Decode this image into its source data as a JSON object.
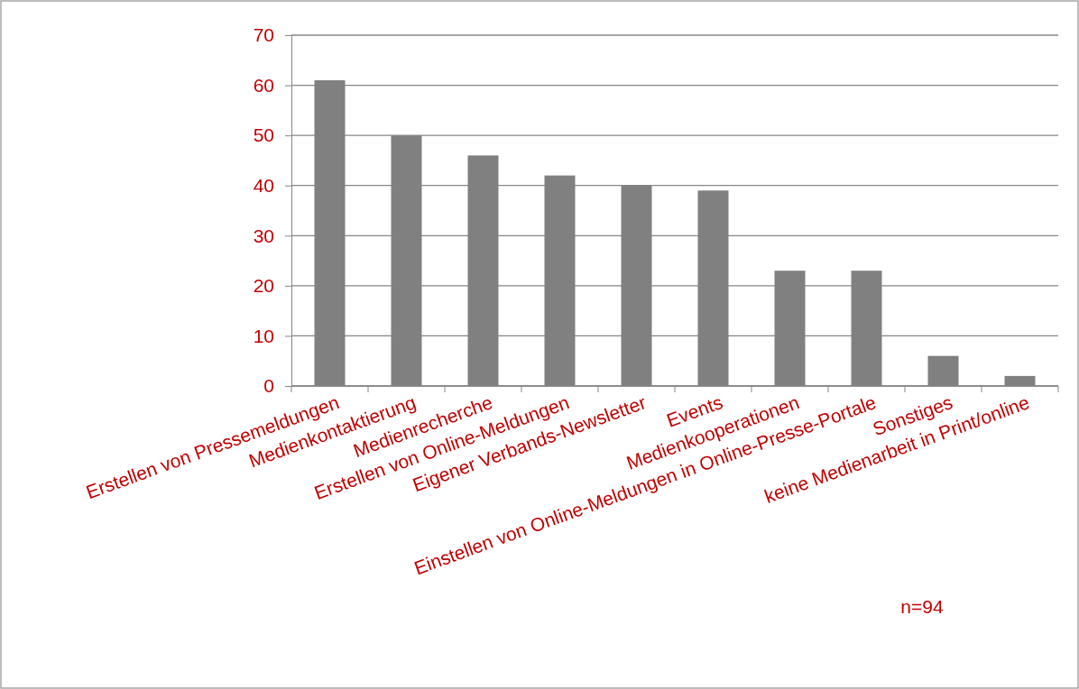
{
  "chart_data": {
    "type": "bar",
    "categories": [
      "Erstellen von Pressemeldungen",
      "Medienkontaktierung",
      "Medienrecherche",
      "Erstellen von Online-Meldungen",
      "Eigener Verbands-Newsletter",
      "Events",
      "Medienkooperationen",
      "Einstellen von Online-Meldungen in Online-Presse-Portale",
      "Sonstiges",
      "keine Medienarbeit in Print/online"
    ],
    "values": [
      61,
      50,
      46,
      42,
      40,
      39,
      23,
      23,
      6,
      2
    ],
    "color": "#808080",
    "ylim": [
      0,
      70
    ],
    "yticks": [
      0,
      10,
      20,
      30,
      40,
      50,
      60,
      70
    ],
    "grid": "y",
    "annotations": [
      "n=94"
    ]
  }
}
